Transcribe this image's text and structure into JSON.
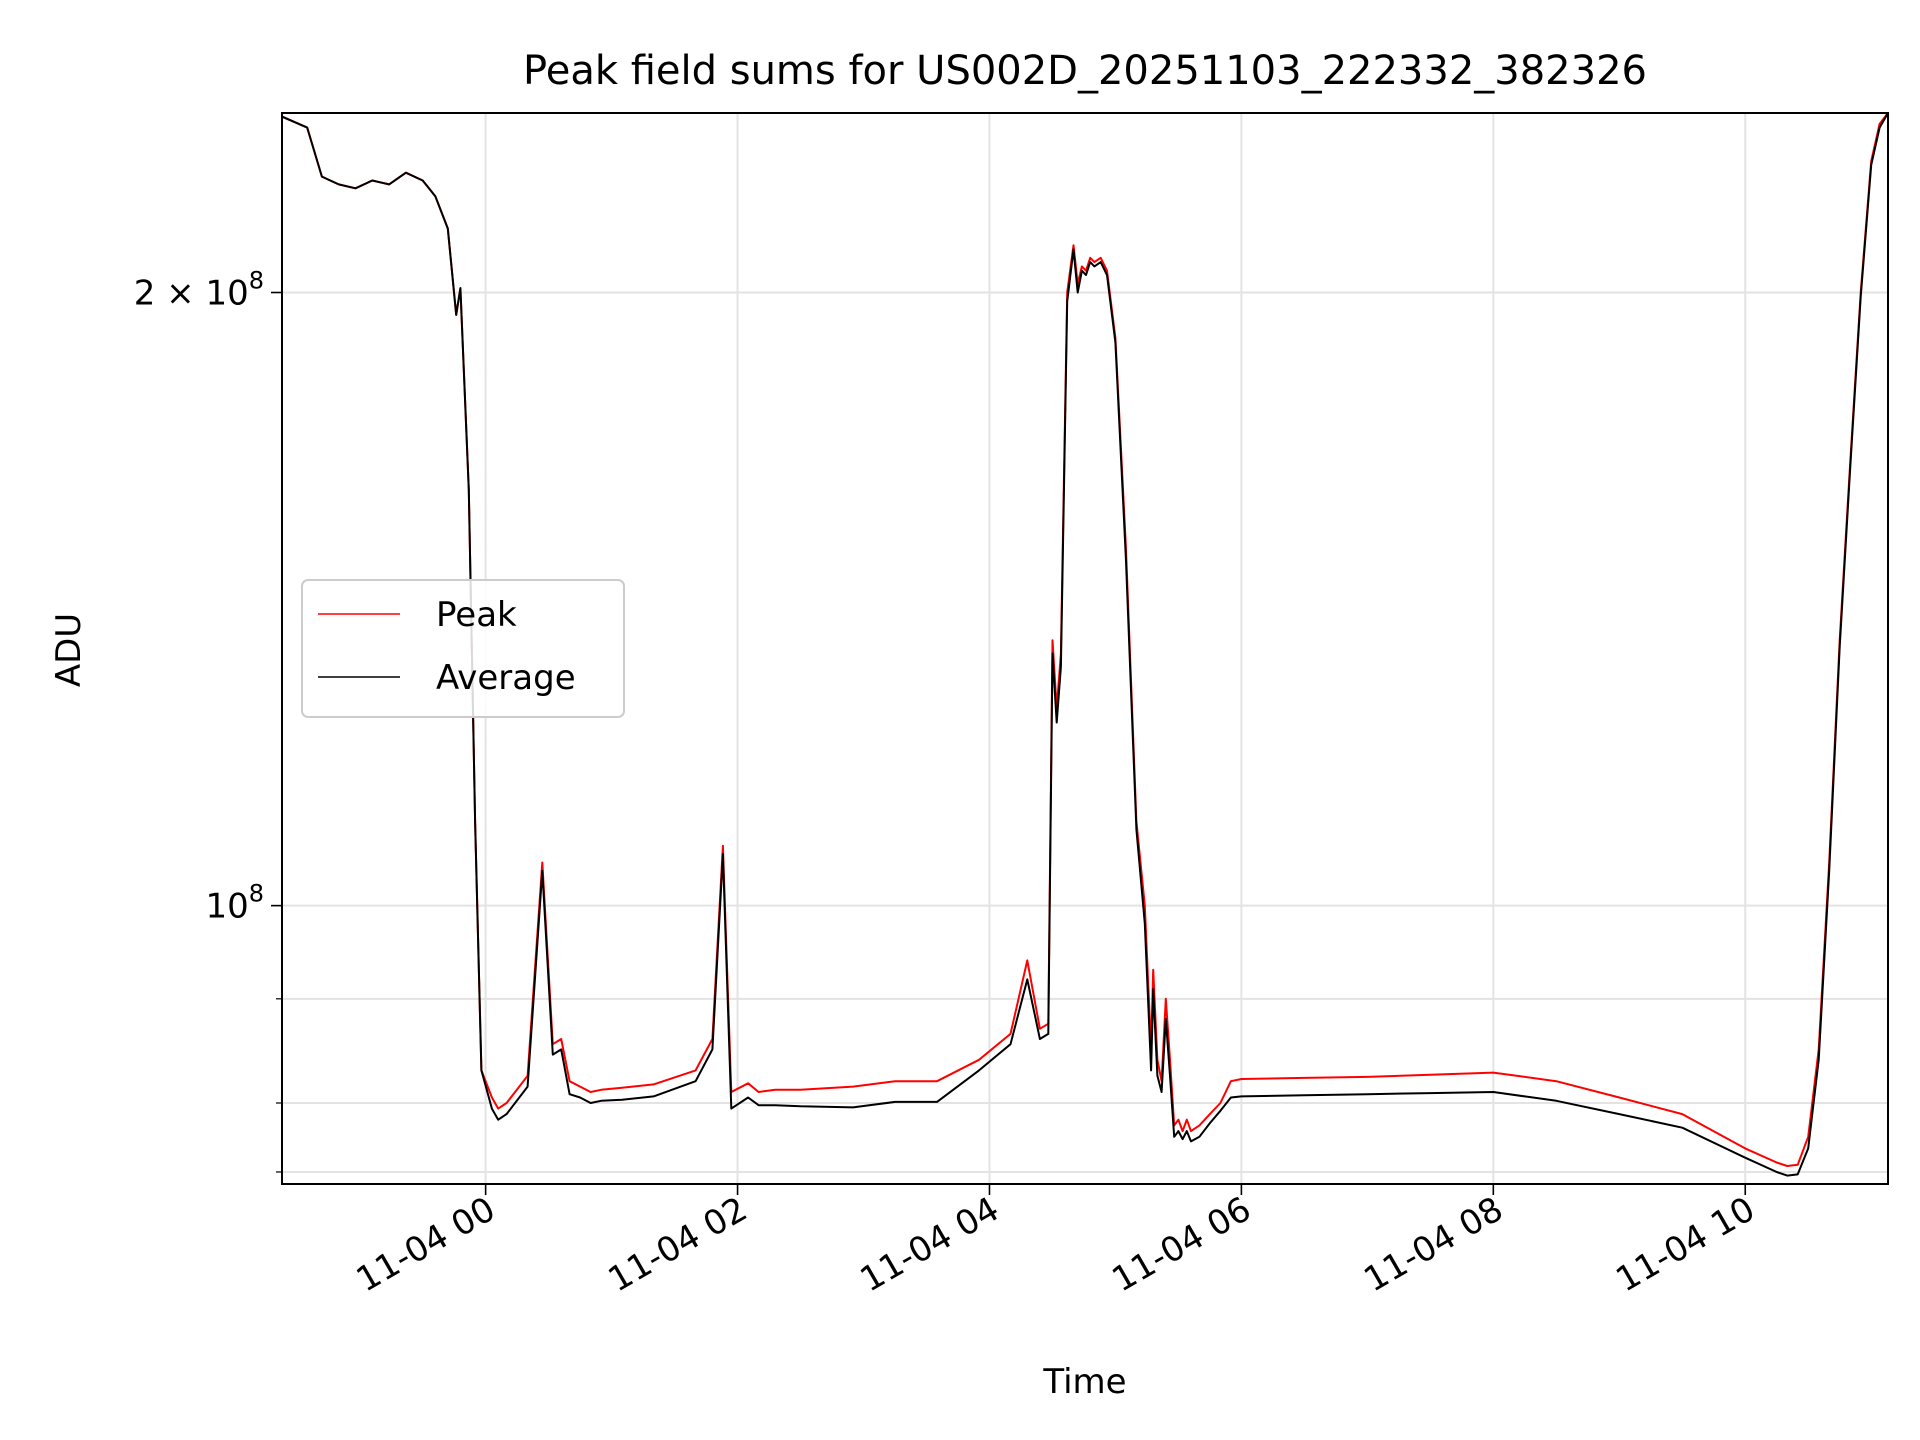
{
  "chart_data": {
    "type": "line",
    "title": "Peak field sums for US002D_20251103_222332_382326",
    "xlabel": "Time",
    "ylabel": "ADU",
    "xlim": [
      "2025-11-03 22:23",
      "2025-11-04 11:08"
    ],
    "ylim": [
      73000000,
      245000000
    ],
    "yscale": "log",
    "grid": true,
    "legend_position": "center-left",
    "x_ticks": [
      "11-04 00",
      "11-04 02",
      "11-04 04",
      "11-04 06",
      "11-04 08",
      "11-04 10"
    ],
    "y_ticks": [
      {
        "value": 100000000,
        "base": "10",
        "exp": "8",
        "prefix": ""
      },
      {
        "value": 200000000,
        "base": "10",
        "exp": "8",
        "prefix": "2 × "
      }
    ],
    "y_minor_ticks": [
      74000000,
      80000000,
      90000000
    ],
    "series": [
      {
        "name": "Peak",
        "color": "#ff0000",
        "x": [
          "2025-11-03 22:23",
          "2025-11-03 22:35",
          "2025-11-03 22:42",
          "2025-11-03 22:50",
          "2025-11-03 22:58",
          "2025-11-03 23:06",
          "2025-11-03 23:14",
          "2025-11-03 23:22",
          "2025-11-03 23:30",
          "2025-11-03 23:36",
          "2025-11-03 23:42",
          "2025-11-03 23:46",
          "2025-11-03 23:48",
          "2025-11-03 23:52",
          "2025-11-03 23:55",
          "2025-11-03 23:58",
          "2025-11-04 00:03",
          "2025-11-04 00:06",
          "2025-11-04 00:10",
          "2025-11-04 00:20",
          "2025-11-04 00:27",
          "2025-11-04 00:32",
          "2025-11-04 00:36",
          "2025-11-04 00:40",
          "2025-11-04 00:45",
          "2025-11-04 00:50",
          "2025-11-04 00:55",
          "2025-11-04 01:05",
          "2025-11-04 01:20",
          "2025-11-04 01:40",
          "2025-11-04 01:48",
          "2025-11-04 01:53",
          "2025-11-04 01:57",
          "2025-11-04 02:05",
          "2025-11-04 02:10",
          "2025-11-04 02:18",
          "2025-11-04 02:30",
          "2025-11-04 02:55",
          "2025-11-04 03:15",
          "2025-11-04 03:35",
          "2025-11-04 03:55",
          "2025-11-04 04:10",
          "2025-11-04 04:18",
          "2025-11-04 04:24",
          "2025-11-04 04:28",
          "2025-11-04 04:30",
          "2025-11-04 04:32",
          "2025-11-04 04:34",
          "2025-11-04 04:37",
          "2025-11-04 04:40",
          "2025-11-04 04:42",
          "2025-11-04 04:44",
          "2025-11-04 04:46",
          "2025-11-04 04:48",
          "2025-11-04 04:50",
          "2025-11-04 04:53",
          "2025-11-04 04:56",
          "2025-11-04 05:00",
          "2025-11-04 05:05",
          "2025-11-04 05:10",
          "2025-11-04 05:14",
          "2025-11-04 05:17",
          "2025-11-04 05:18",
          "2025-11-04 05:20",
          "2025-11-04 05:22",
          "2025-11-04 05:24",
          "2025-11-04 05:26",
          "2025-11-04 05:28",
          "2025-11-04 05:30",
          "2025-11-04 05:32",
          "2025-11-04 05:34",
          "2025-11-04 05:36",
          "2025-11-04 05:40",
          "2025-11-04 05:45",
          "2025-11-04 05:50",
          "2025-11-04 05:55",
          "2025-11-04 06:00",
          "2025-11-04 06:30",
          "2025-11-04 07:00",
          "2025-11-04 07:30",
          "2025-11-04 08:00",
          "2025-11-04 08:30",
          "2025-11-04 09:00",
          "2025-11-04 09:30",
          "2025-11-04 10:00",
          "2025-11-04 10:15",
          "2025-11-04 10:20",
          "2025-11-04 10:25",
          "2025-11-04 10:30",
          "2025-11-04 10:35",
          "2025-11-04 10:40",
          "2025-11-04 10:45",
          "2025-11-04 10:50",
          "2025-11-04 10:55",
          "2025-11-04 11:00",
          "2025-11-04 11:04",
          "2025-11-04 11:08"
        ],
        "y": [
          244000000,
          241000000,
          228000000,
          226000000,
          225000000,
          227000000,
          226000000,
          229000000,
          227000000,
          223000000,
          215000000,
          195000000,
          201000000,
          160000000,
          110000000,
          83000000,
          80500000,
          79500000,
          80000000,
          82500000,
          105000000,
          85500000,
          86000000,
          82000000,
          81500000,
          81000000,
          81200000,
          81400000,
          81700000,
          83000000,
          86000000,
          107000000,
          81000000,
          81800000,
          81000000,
          81200000,
          81200000,
          81500000,
          82000000,
          82000000,
          84000000,
          86500000,
          94000000,
          87000000,
          87500000,
          135000000,
          125000000,
          133000000,
          200000000,
          211000000,
          202000000,
          206000000,
          205000000,
          208000000,
          207000000,
          208000000,
          205000000,
          190000000,
          150000000,
          110000000,
          100000000,
          85000000,
          93000000,
          84000000,
          82000000,
          90000000,
          84000000,
          78000000,
          78500000,
          77500000,
          78500000,
          77500000,
          78000000,
          79000000,
          80000000,
          82000000,
          82200000,
          82300000,
          82400000,
          82600000,
          82800000,
          82000000,
          80500000,
          79000000,
          76000000,
          74800000,
          74500000,
          74600000,
          77000000,
          85000000,
          105000000,
          135000000,
          165000000,
          200000000,
          232000000,
          242000000,
          245000000
        ]
      },
      {
        "name": "Average",
        "color": "#000000",
        "x": [
          "2025-11-03 22:23",
          "2025-11-03 22:35",
          "2025-11-03 22:42",
          "2025-11-03 22:50",
          "2025-11-03 22:58",
          "2025-11-03 23:06",
          "2025-11-03 23:14",
          "2025-11-03 23:22",
          "2025-11-03 23:30",
          "2025-11-03 23:36",
          "2025-11-03 23:42",
          "2025-11-03 23:46",
          "2025-11-03 23:48",
          "2025-11-03 23:52",
          "2025-11-03 23:55",
          "2025-11-03 23:58",
          "2025-11-04 00:03",
          "2025-11-04 00:06",
          "2025-11-04 00:10",
          "2025-11-04 00:20",
          "2025-11-04 00:27",
          "2025-11-04 00:32",
          "2025-11-04 00:36",
          "2025-11-04 00:40",
          "2025-11-04 00:45",
          "2025-11-04 00:50",
          "2025-11-04 00:55",
          "2025-11-04 01:05",
          "2025-11-04 01:20",
          "2025-11-04 01:40",
          "2025-11-04 01:48",
          "2025-11-04 01:53",
          "2025-11-04 01:57",
          "2025-11-04 02:05",
          "2025-11-04 02:10",
          "2025-11-04 02:18",
          "2025-11-04 02:30",
          "2025-11-04 02:55",
          "2025-11-04 03:15",
          "2025-11-04 03:35",
          "2025-11-04 03:55",
          "2025-11-04 04:10",
          "2025-11-04 04:18",
          "2025-11-04 04:24",
          "2025-11-04 04:28",
          "2025-11-04 04:30",
          "2025-11-04 04:32",
          "2025-11-04 04:34",
          "2025-11-04 04:37",
          "2025-11-04 04:40",
          "2025-11-04 04:42",
          "2025-11-04 04:44",
          "2025-11-04 04:46",
          "2025-11-04 04:48",
          "2025-11-04 04:50",
          "2025-11-04 04:53",
          "2025-11-04 04:56",
          "2025-11-04 05:00",
          "2025-11-04 05:05",
          "2025-11-04 05:10",
          "2025-11-04 05:14",
          "2025-11-04 05:17",
          "2025-11-04 05:18",
          "2025-11-04 05:20",
          "2025-11-04 05:22",
          "2025-11-04 05:24",
          "2025-11-04 05:26",
          "2025-11-04 05:28",
          "2025-11-04 05:30",
          "2025-11-04 05:32",
          "2025-11-04 05:34",
          "2025-11-04 05:36",
          "2025-11-04 05:40",
          "2025-11-04 05:45",
          "2025-11-04 05:50",
          "2025-11-04 05:55",
          "2025-11-04 06:00",
          "2025-11-04 06:30",
          "2025-11-04 07:00",
          "2025-11-04 07:30",
          "2025-11-04 08:00",
          "2025-11-04 08:30",
          "2025-11-04 09:00",
          "2025-11-04 09:30",
          "2025-11-04 10:00",
          "2025-11-04 10:15",
          "2025-11-04 10:20",
          "2025-11-04 10:25",
          "2025-11-04 10:30",
          "2025-11-04 10:35",
          "2025-11-04 10:40",
          "2025-11-04 10:45",
          "2025-11-04 10:50",
          "2025-11-04 10:55",
          "2025-11-04 11:00",
          "2025-11-04 11:04",
          "2025-11-04 11:08"
        ],
        "y": [
          244000000,
          241000000,
          228000000,
          226000000,
          225000000,
          227000000,
          226000000,
          229000000,
          227000000,
          223000000,
          215000000,
          195000000,
          201000000,
          160000000,
          110000000,
          83000000,
          79500000,
          78500000,
          79000000,
          81500000,
          104000000,
          84500000,
          85000000,
          80800000,
          80500000,
          80000000,
          80200000,
          80300000,
          80600000,
          82000000,
          85000000,
          106000000,
          79500000,
          80500000,
          79800000,
          79800000,
          79700000,
          79600000,
          80100000,
          80100000,
          83000000,
          85500000,
          92000000,
          86000000,
          86500000,
          133000000,
          123000000,
          131000000,
          198000000,
          210000000,
          200000000,
          205000000,
          204000000,
          207000000,
          206000000,
          207000000,
          204000000,
          189000000,
          148000000,
          109000000,
          98000000,
          83000000,
          91000000,
          82500000,
          81000000,
          88000000,
          82500000,
          77000000,
          77500000,
          76800000,
          77500000,
          76600000,
          77000000,
          78200000,
          79300000,
          80500000,
          80600000,
          80700000,
          80800000,
          80900000,
          81000000,
          80200000,
          79000000,
          77800000,
          75200000,
          74000000,
          73700000,
          73800000,
          76000000,
          84000000,
          104000000,
          134000000,
          164000000,
          199000000,
          231000000,
          241000000,
          245000000
        ]
      }
    ]
  }
}
